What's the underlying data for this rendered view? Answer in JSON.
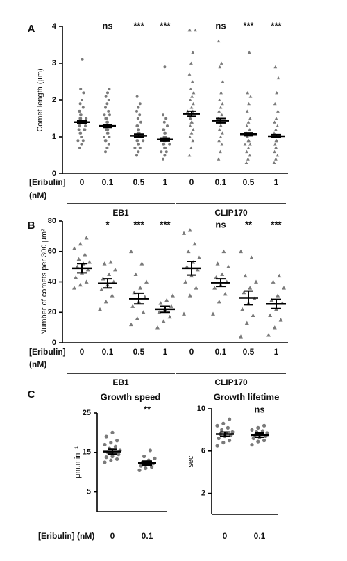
{
  "chart_data": [
    {
      "type": "dotplot",
      "panel": "A",
      "y_label": "Comet length (μm)",
      "ylim": [
        0,
        4
      ],
      "yticks": [
        0,
        1,
        2,
        3,
        4
      ],
      "x_label": [
        "[Eribulin]",
        "(nM)"
      ],
      "series": [
        {
          "name": "EB1",
          "marker": "circle",
          "color": "#7a7a7a",
          "categories": [
            "0",
            "0.1",
            "0.5",
            "1"
          ],
          "points": [
            [
              0.7,
              0.8,
              0.9,
              0.9,
              1.0,
              1.0,
              1.1,
              1.1,
              1.2,
              1.2,
              1.2,
              1.3,
              1.3,
              1.3,
              1.4,
              1.4,
              1.4,
              1.5,
              1.5,
              1.5,
              1.6,
              1.6,
              1.7,
              1.7,
              1.8,
              1.9,
              2.0,
              2.2,
              2.3,
              3.1
            ],
            [
              0.6,
              0.7,
              0.8,
              0.9,
              0.9,
              1.0,
              1.0,
              1.1,
              1.1,
              1.2,
              1.2,
              1.2,
              1.3,
              1.3,
              1.3,
              1.4,
              1.4,
              1.5,
              1.5,
              1.6,
              1.6,
              1.7,
              1.8,
              1.9,
              2.0,
              2.1,
              2.2,
              2.3
            ],
            [
              0.5,
              0.6,
              0.7,
              0.7,
              0.8,
              0.8,
              0.9,
              0.9,
              0.9,
              1.0,
              1.0,
              1.0,
              1.1,
              1.1,
              1.1,
              1.2,
              1.2,
              1.3,
              1.3,
              1.4,
              1.5,
              1.6,
              1.7,
              1.8,
              1.9,
              2.1
            ],
            [
              0.4,
              0.5,
              0.6,
              0.6,
              0.7,
              0.7,
              0.8,
              0.8,
              0.8,
              0.9,
              0.9,
              0.9,
              1.0,
              1.0,
              1.0,
              1.1,
              1.1,
              1.2,
              1.2,
              1.3,
              1.4,
              1.5,
              1.6,
              2.9
            ]
          ],
          "means": [
            1.4,
            1.3,
            1.03,
            0.93
          ],
          "sems": [
            0.04,
            0.04,
            0.04,
            0.04
          ],
          "significance": [
            null,
            "ns",
            "***",
            "***"
          ]
        },
        {
          "name": "CLIP170",
          "marker": "triangle",
          "color": "#7a7a7a",
          "categories": [
            "0",
            "0.1",
            "0.5",
            "1"
          ],
          "points": [
            [
              0.5,
              0.7,
              0.9,
              1.0,
              1.1,
              1.2,
              1.3,
              1.4,
              1.4,
              1.5,
              1.5,
              1.6,
              1.6,
              1.7,
              1.7,
              1.8,
              1.9,
              2.0,
              2.1,
              2.2,
              2.3,
              2.5,
              2.7,
              3.0,
              3.3,
              3.9,
              3.9,
              3.9
            ],
            [
              0.4,
              0.6,
              0.8,
              0.9,
              1.0,
              1.1,
              1.2,
              1.3,
              1.3,
              1.4,
              1.4,
              1.5,
              1.5,
              1.6,
              1.7,
              1.8,
              1.9,
              2.0,
              2.2,
              2.5,
              2.9,
              3.0,
              3.6
            ],
            [
              0.3,
              0.4,
              0.5,
              0.6,
              0.7,
              0.8,
              0.8,
              0.9,
              0.9,
              1.0,
              1.0,
              1.1,
              1.1,
              1.2,
              1.3,
              1.4,
              1.5,
              1.7,
              1.9,
              2.1,
              2.2,
              3.3
            ],
            [
              0.3,
              0.4,
              0.5,
              0.6,
              0.7,
              0.7,
              0.8,
              0.9,
              0.9,
              1.0,
              1.0,
              1.1,
              1.2,
              1.3,
              1.4,
              1.5,
              1.7,
              1.9,
              2.2,
              2.6,
              2.9
            ]
          ],
          "means": [
            1.63,
            1.44,
            1.07,
            1.02
          ],
          "sems": [
            0.07,
            0.06,
            0.04,
            0.04
          ],
          "significance": [
            null,
            "ns",
            "***",
            "***"
          ]
        }
      ]
    },
    {
      "type": "dotplot",
      "panel": "B",
      "y_label": "Number of comets per 300 μm²",
      "ylim": [
        0,
        80
      ],
      "yticks": [
        0,
        20,
        40,
        60,
        80
      ],
      "x_label": [
        "[Eribulin]",
        "(nM)"
      ],
      "series": [
        {
          "name": "EB1",
          "marker": "triangle",
          "color": "#7a7a7a",
          "categories": [
            "0",
            "0.1",
            "0.5",
            "1"
          ],
          "points": [
            [
              36,
              38,
              40,
              43,
              46,
              48,
              50,
              52,
              53,
              55,
              58,
              62,
              65,
              69
            ],
            [
              22,
              27,
              31,
              35,
              38,
              40,
              42,
              45,
              48,
              52,
              53
            ],
            [
              12,
              16,
              20,
              24,
              27,
              30,
              33,
              36,
              40,
              45,
              52,
              60
            ],
            [
              10,
              14,
              17,
              20,
              22,
              24,
              26,
              28,
              31
            ]
          ],
          "means": [
            49,
            39,
            29,
            22
          ],
          "sems": [
            3,
            3,
            3.5,
            2
          ],
          "significance": [
            null,
            "*",
            "***",
            "***"
          ]
        },
        {
          "name": "CLIP170",
          "marker": "triangle",
          "color": "#7a7a7a",
          "categories": [
            "0",
            "0.1",
            "0.5",
            "1"
          ],
          "points": [
            [
              19,
              31,
              36,
              40,
              44,
              48,
              50,
              53,
              56,
              60,
              65,
              72,
              74
            ],
            [
              19,
              27,
              32,
              36,
              38,
              40,
              43,
              45,
              50,
              52,
              60
            ],
            [
              4,
              13,
              18,
              22,
              26,
              29,
              33,
              36,
              40,
              44,
              56,
              60
            ],
            [
              5,
              10,
              15,
              18,
              22,
              26,
              28,
              31,
              36,
              40,
              44
            ]
          ],
          "means": [
            49,
            39.5,
            29.5,
            25.5
          ],
          "sems": [
            4.5,
            2.5,
            4.5,
            3
          ],
          "significance": [
            null,
            "ns",
            "**",
            "***"
          ]
        }
      ]
    },
    {
      "type": "dotplot",
      "panel": "C",
      "title": "Growth speed",
      "y_label": "μm.min⁻¹",
      "ylim": [
        0,
        25
      ],
      "yticks": [
        5,
        15,
        25
      ],
      "x_label": "[Eribulin] (nM)",
      "series": [
        {
          "marker": "circle",
          "color": "#7a7a7a",
          "categories": [
            "0",
            "0.1"
          ],
          "points": [
            [
              12.5,
              13,
              13.3,
              13.8,
              14,
              14.5,
              15,
              15,
              15.5,
              16,
              16.5,
              17,
              17.5,
              18,
              19,
              20
            ],
            [
              10.5,
              11,
              11.3,
              11.6,
              12,
              12.2,
              12.5,
              13,
              13.5,
              14,
              15.5
            ]
          ],
          "means": [
            15.2,
            12.3
          ],
          "sems": [
            0.6,
            0.5
          ],
          "significance": [
            null,
            "**"
          ]
        }
      ]
    },
    {
      "type": "dotplot",
      "title": "Growth lifetime",
      "y_label": "sec",
      "ylim": [
        0,
        10
      ],
      "yticks": [
        2,
        6,
        10
      ],
      "series": [
        {
          "marker": "circle",
          "color": "#7a7a7a",
          "categories": [
            "0",
            "0.1"
          ],
          "points": [
            [
              6.5,
              6.8,
              7.0,
              7.2,
              7.4,
              7.5,
              7.6,
              7.7,
              7.8,
              8.0,
              8.2,
              8.4,
              8.6,
              9.0
            ],
            [
              6.6,
              6.9,
              7.0,
              7.2,
              7.3,
              7.4,
              7.5,
              7.6,
              7.7,
              7.8,
              7.9,
              8.0,
              8.2,
              8.4
            ]
          ],
          "means": [
            7.6,
            7.5
          ],
          "sems": [
            0.2,
            0.2
          ],
          "significance": [
            null,
            "ns"
          ]
        }
      ]
    }
  ]
}
